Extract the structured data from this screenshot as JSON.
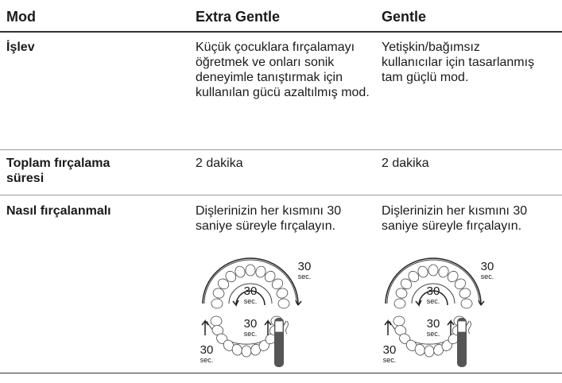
{
  "table": {
    "header": [
      "Mod",
      "Extra Gentle",
      "Gentle"
    ],
    "rows": [
      [
        "İşlev",
        "Küçük çocuklara fırçalamayı öğretmek ve onları sonik deneyimle tanıştırmak için kullanılan gücü azaltılmış mod.",
        "Yetişkin/bağımsız kullanıcılar için tasarlanmış tam güçlü mod."
      ],
      [
        "Toplam fırçalama süresi",
        "2 dakika",
        "2 dakika"
      ],
      [
        "Nasıl fırçalanmalı",
        "Dişlerinizin her kısmını 30 saniye süreyle fırçalayın.",
        "Dişlerinizin her kısmını 30 saniye süreyle fırçalayın."
      ]
    ]
  },
  "diagrams": [
    {
      "labels": [
        [
          "30",
          "sec."
        ],
        [
          "30",
          "sec."
        ],
        [
          "30",
          "sec."
        ],
        [
          "30",
          "sec."
        ]
      ]
    },
    {
      "labels": [
        [
          "30",
          "sec."
        ],
        [
          "30",
          "sec."
        ],
        [
          "30",
          "sec."
        ],
        [
          "30",
          "sec."
        ]
      ]
    }
  ]
}
